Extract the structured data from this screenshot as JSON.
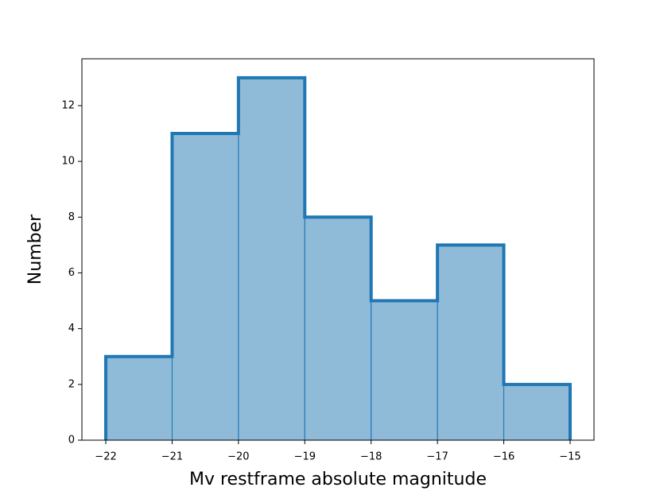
{
  "chart_data": {
    "type": "histogram",
    "x_label": "Mv restframe absolute magnitude",
    "y_label": "Number",
    "bins": [
      -22,
      -21,
      -20,
      -19,
      -18,
      -17,
      -16,
      -15
    ],
    "counts": [
      3,
      11,
      13,
      8,
      5,
      7,
      2
    ],
    "color": "#1f77b4",
    "xlim": [
      -22.36,
      -14.64
    ],
    "ylim": [
      0,
      13.68
    ],
    "xticks": [
      {
        "value": -22,
        "label": "−22"
      },
      {
        "value": -21,
        "label": "−21"
      },
      {
        "value": -20,
        "label": "−20"
      },
      {
        "value": -19,
        "label": "−19"
      },
      {
        "value": -18,
        "label": "−18"
      },
      {
        "value": -17,
        "label": "−17"
      },
      {
        "value": -16,
        "label": "−16"
      },
      {
        "value": -15,
        "label": "−15"
      }
    ],
    "yticks": [
      0,
      2,
      4,
      6,
      8,
      10,
      12
    ],
    "grid": false
  }
}
